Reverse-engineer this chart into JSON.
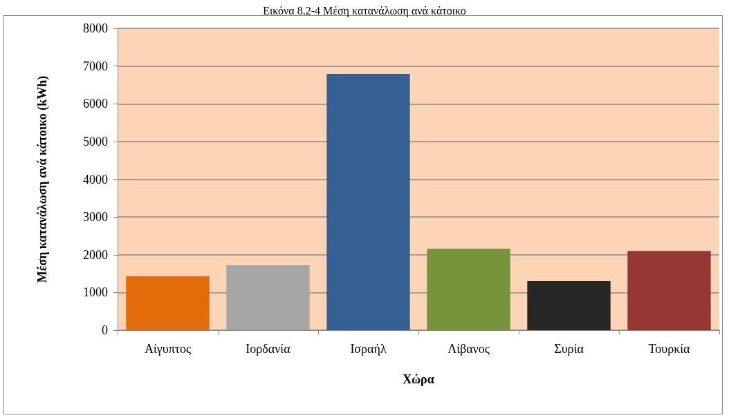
{
  "chart_data": {
    "type": "bar",
    "title": "Εικόνα 8.2-4 Μέση κατανάλωση ανά κάτοικο",
    "xlabel": "Χώρα",
    "ylabel": "Μέση κατανάλωση ανά κάτοικο (kWh)",
    "categories": [
      "Αίγυπτος",
      "Ιορδανία",
      "Ισραήλ",
      "Λίβανος",
      "Συρία",
      "Τουρκία"
    ],
    "values": [
      1430,
      1720,
      6790,
      2160,
      1300,
      2100
    ],
    "colors": [
      "#e26b0a",
      "#a6a6a6",
      "#366092",
      "#77933c",
      "#262626",
      "#953735"
    ],
    "ylim": [
      0,
      8000
    ],
    "yticks": [
      0,
      1000,
      2000,
      3000,
      4000,
      5000,
      6000,
      7000,
      8000
    ],
    "grid": true
  }
}
